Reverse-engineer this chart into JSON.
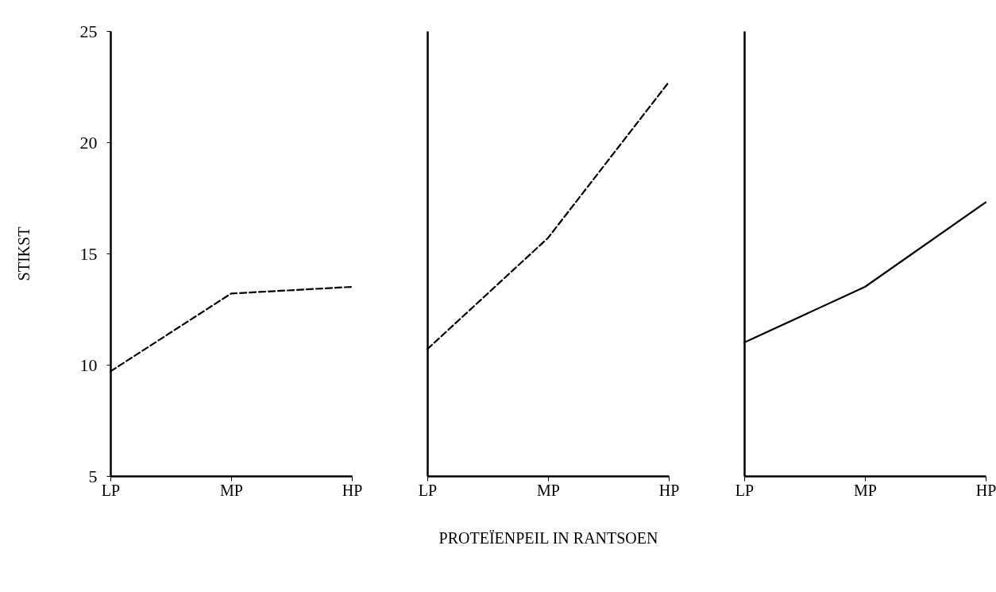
{
  "chart_data": [
    {
      "type": "line",
      "ylabel": "STIKST",
      "categories": [
        "LP",
        "MP",
        "HP"
      ],
      "values": [
        9.7,
        13.2,
        13.5
      ],
      "color": "#000000",
      "line_style": "dashed",
      "ylim": [
        5,
        25
      ],
      "yticks": [
        5,
        10,
        15,
        20,
        25
      ],
      "grid": false,
      "marker": "none"
    },
    {
      "type": "line",
      "xlabel": "PROTEÏENPEIL IN RANTSOEN",
      "categories": [
        "LP",
        "MP",
        "HP"
      ],
      "values": [
        10.7,
        15.7,
        22.7
      ],
      "color": "#000000",
      "line_style": "dashed",
      "ylim": [
        5,
        25
      ],
      "yticks": [
        5,
        10,
        15,
        20,
        25
      ],
      "grid": false,
      "marker": "none",
      "tick_labels": "x"
    },
    {
      "type": "line",
      "categories": [
        "LP",
        "MP",
        "HP"
      ],
      "values": [
        11.0,
        13.5,
        17.3
      ],
      "color": "#000000",
      "line_style": "solid",
      "ylim": [
        5,
        25
      ],
      "yticks": [
        5,
        10,
        15,
        20,
        25
      ],
      "grid": false,
      "marker": "none",
      "tick_labels": "x"
    }
  ]
}
